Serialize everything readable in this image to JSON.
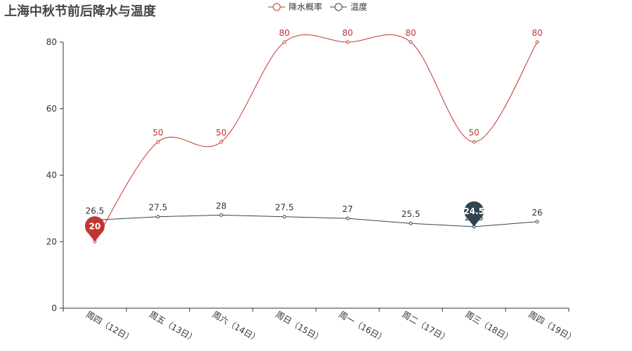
{
  "chart_data": {
    "type": "line",
    "title": "上海中秋节前后降水与温度",
    "categories": [
      "周四（12日）",
      "周五（13日）",
      "周六（14日）",
      "周日（15日）",
      "周一（16日）",
      "周二（17日）",
      "周三（18日）",
      "周四（19日）"
    ],
    "series": [
      {
        "name": "降水概率",
        "values": [
          20,
          50,
          50,
          80,
          80,
          80,
          50,
          80
        ],
        "color": "#c23531",
        "smooth": true,
        "markpoint": {
          "type": "min",
          "label": "20",
          "index": 0
        }
      },
      {
        "name": "温度",
        "values": [
          26.5,
          27.5,
          28,
          27.5,
          27,
          25.5,
          24.5,
          26
        ],
        "color": "#2f4554",
        "smooth": false,
        "markpoint": {
          "type": "min",
          "label": "24.5",
          "index": 6
        }
      }
    ],
    "ylim": [
      0,
      80
    ],
    "yticks": [
      0,
      20,
      40,
      60,
      80
    ],
    "legend_position": "top-center",
    "grid": false
  }
}
